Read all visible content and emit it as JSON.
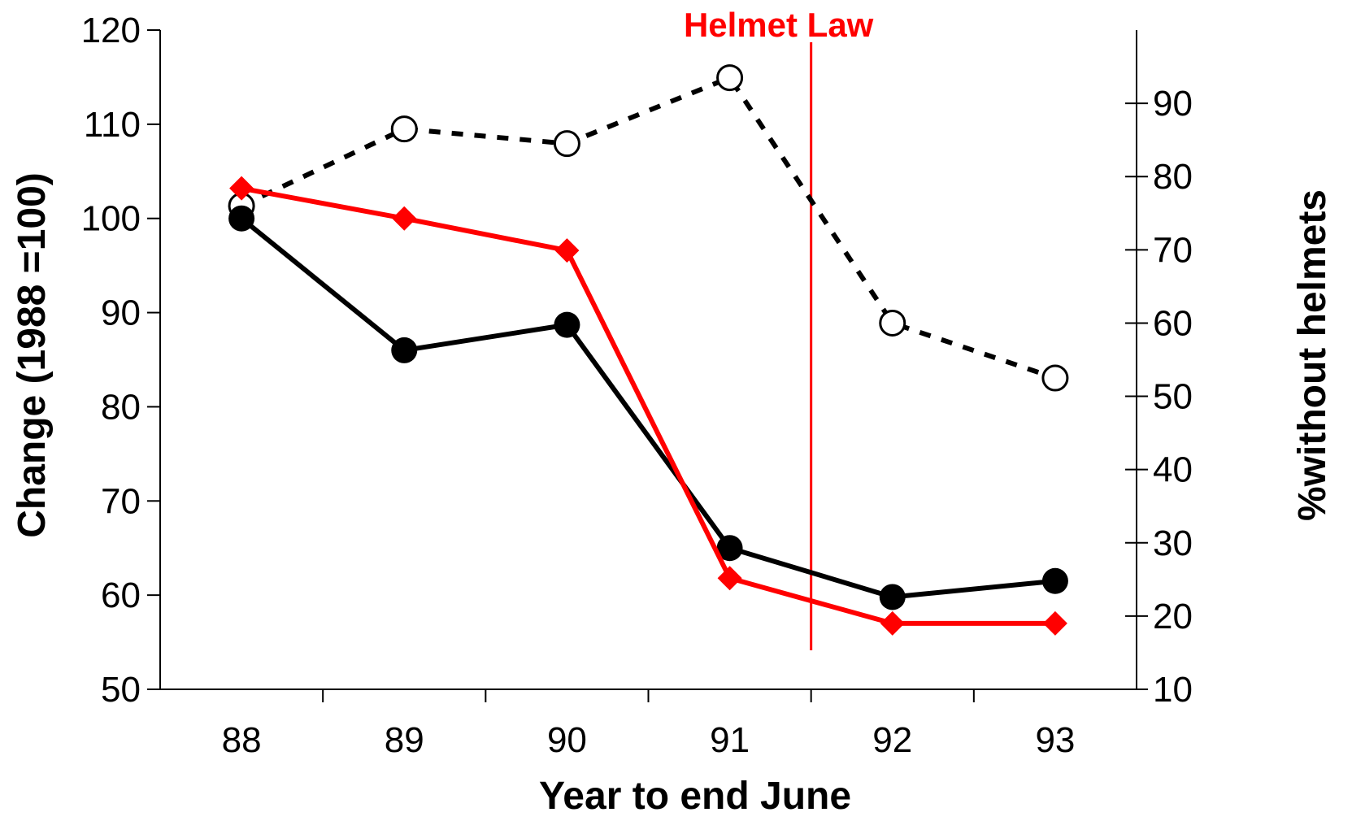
{
  "chart_data": {
    "type": "line",
    "title": "",
    "xlabel": "Year to end June",
    "ylabel": "Change (1988 =100)",
    "y2label": "%without helmets",
    "categories": [
      "88",
      "89",
      "90",
      "91",
      "92",
      "93"
    ],
    "ylim": [
      50,
      120
    ],
    "yticks": [
      "50",
      "60",
      "70",
      "80",
      "90",
      "100",
      "110",
      "120"
    ],
    "y2lim": [
      10,
      100
    ],
    "y2ticks": [
      "10",
      "20",
      "30",
      "40",
      "50",
      "60",
      "70",
      "80",
      "90"
    ],
    "grid": false,
    "legend": "none",
    "series": [
      {
        "axis": "left",
        "style": "solid",
        "marker": "filled-circle",
        "color": "#000000",
        "values": [
          100,
          86,
          88.7,
          65,
          59.8,
          61.5
        ]
      },
      {
        "axis": "left",
        "style": "solid",
        "marker": "diamond",
        "color": "#ff0000",
        "values": [
          103.2,
          100,
          96.6,
          61.8,
          57,
          57
        ]
      },
      {
        "axis": "right",
        "style": "dashed",
        "marker": "open-circle",
        "color": "#000000",
        "values": [
          76,
          86.5,
          84.5,
          93.5,
          60,
          52.5
        ]
      }
    ],
    "annotations": [
      {
        "text": "Helmet Law",
        "x_between": [
          "90",
          "91"
        ],
        "color": "#ff0000",
        "marker": "vertical-line"
      }
    ]
  }
}
